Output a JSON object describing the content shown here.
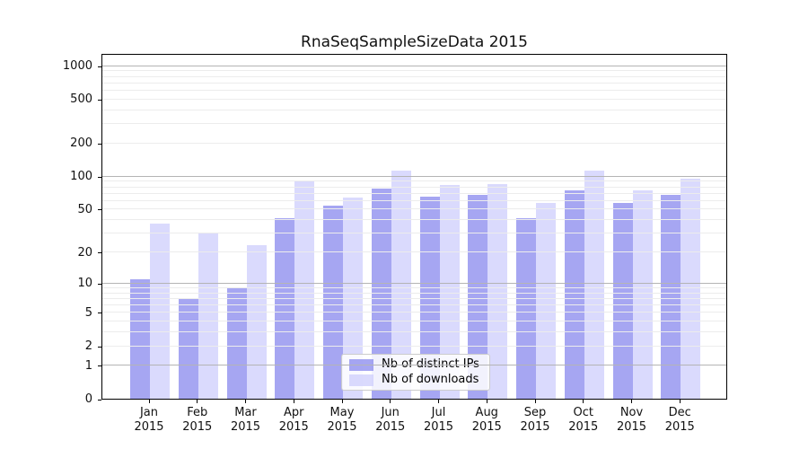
{
  "chart_data": {
    "type": "bar",
    "title": "RnaSeqSampleSizeData 2015",
    "categories": [
      "Jan",
      "Feb",
      "Mar",
      "Apr",
      "May",
      "Jun",
      "Jul",
      "Aug",
      "Sep",
      "Oct",
      "Nov",
      "Dec"
    ],
    "year_label": "2015",
    "series": [
      {
        "name": "Nb of distinct IPs",
        "color": "rgba(136,136,238,0.75)",
        "values": [
          11,
          7,
          9,
          41,
          54,
          77,
          65,
          68,
          41,
          75,
          57,
          68
        ]
      },
      {
        "name": "Nb of downloads",
        "color": "rgba(204,204,252,0.72)",
        "values": [
          37,
          30,
          23,
          92,
          64,
          112,
          83,
          85,
          57,
          112,
          75,
          95
        ]
      }
    ],
    "xlabel": "",
    "ylabel": "",
    "yscale": "log1p",
    "yticks": [
      0,
      1,
      2,
      5,
      10,
      20,
      50,
      100,
      200,
      500,
      1000
    ],
    "minor_gridlines": [
      2,
      3,
      4,
      5,
      6,
      7,
      8,
      9,
      20,
      30,
      40,
      50,
      60,
      70,
      80,
      90,
      200,
      300,
      400,
      500,
      600,
      700,
      800,
      900
    ],
    "major_gridlines": [
      1,
      10,
      100,
      1000
    ],
    "ylim": [
      0,
      1300
    ],
    "grid": "horizontal",
    "legend_position": "lower center",
    "colors": {
      "grid_major": "#b4b4b4",
      "grid_minor": "#ececec",
      "axis": "#000000",
      "background": "#ffffff"
    }
  }
}
